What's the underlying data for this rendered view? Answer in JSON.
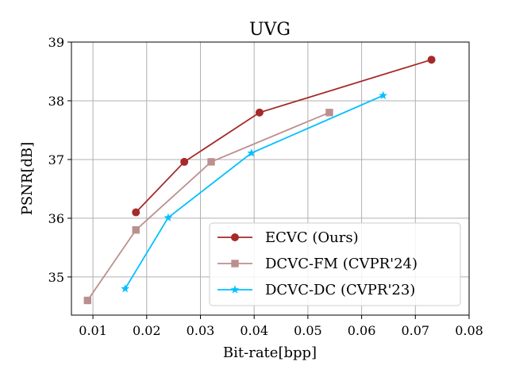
{
  "chart_data": {
    "type": "line",
    "title": "UVG",
    "xlabel": "Bit-rate[bpp]",
    "ylabel": "PSNR[dB]",
    "xlim": [
      0.006,
      0.08
    ],
    "ylim": [
      34.35,
      39.0
    ],
    "xticks": [
      0.01,
      0.02,
      0.03,
      0.04,
      0.05,
      0.06,
      0.07,
      0.08
    ],
    "xtick_labels": [
      "0.01",
      "0.02",
      "0.03",
      "0.04",
      "0.05",
      "0.06",
      "0.07",
      "0.08"
    ],
    "yticks": [
      35,
      36,
      37,
      38,
      39
    ],
    "ytick_labels": [
      "35",
      "36",
      "37",
      "38",
      "39"
    ],
    "grid": true,
    "legend_position": "lower-right",
    "series": [
      {
        "name": "ECVC (Ours)",
        "color": "#a52a2a",
        "marker": "circle",
        "x": [
          0.018,
          0.027,
          0.041,
          0.073
        ],
        "y": [
          36.1,
          36.96,
          37.8,
          38.7
        ]
      },
      {
        "name": "DCVC-FM (CVPR'24)",
        "color": "#bc8f8f",
        "marker": "square",
        "x": [
          0.009,
          0.018,
          0.032,
          0.054
        ],
        "y": [
          34.6,
          35.8,
          36.96,
          37.8
        ]
      },
      {
        "name": "DCVC-DC (CVPR'23)",
        "color": "#00bfff",
        "marker": "star",
        "x": [
          0.016,
          0.024,
          0.0395,
          0.064
        ],
        "y": [
          34.8,
          36.01,
          37.11,
          38.09
        ]
      }
    ]
  }
}
